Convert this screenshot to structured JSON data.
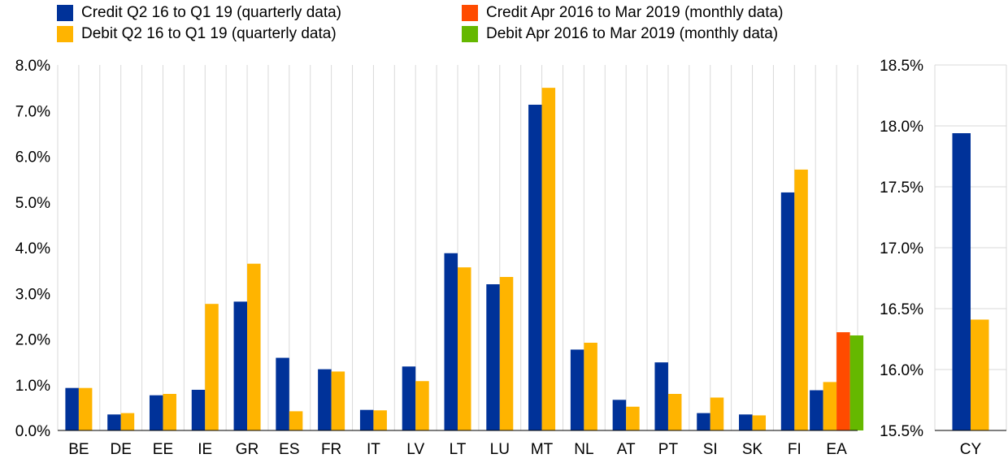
{
  "chart_data": [
    {
      "type": "bar",
      "categories": [
        "BE",
        "DE",
        "EE",
        "IE",
        "GR",
        "ES",
        "FR",
        "IT",
        "LV",
        "LT",
        "LU",
        "MT",
        "NL",
        "AT",
        "PT",
        "SI",
        "SK",
        "FI",
        "EA"
      ],
      "series": [
        {
          "name": "Credit Q2 16 to Q1 19 (quarterly data)",
          "color": "#003299",
          "values": [
            0.93,
            0.35,
            0.77,
            0.89,
            2.82,
            1.59,
            1.34,
            0.45,
            1.4,
            3.88,
            3.2,
            7.13,
            1.77,
            0.67,
            1.49,
            0.38,
            0.35,
            5.21,
            0.88
          ]
        },
        {
          "name": "Debit Q2 16 to Q1 19 (quarterly data)",
          "color": "#FFB400",
          "values": [
            0.93,
            0.38,
            0.8,
            2.77,
            3.65,
            0.42,
            1.29,
            0.44,
            1.08,
            3.57,
            3.36,
            7.5,
            1.92,
            0.52,
            0.8,
            0.72,
            0.33,
            5.71,
            1.06
          ]
        },
        {
          "name": "Credit Apr 2016 to Mar 2019 (monthly data)",
          "color": "#FF4B00",
          "values": [
            null,
            null,
            null,
            null,
            null,
            null,
            null,
            null,
            null,
            null,
            null,
            null,
            null,
            null,
            null,
            null,
            null,
            null,
            2.15
          ]
        },
        {
          "name": "Debit Apr 2016 to Mar 2019 (monthly data)",
          "color": "#65B800",
          "values": [
            null,
            null,
            null,
            null,
            null,
            null,
            null,
            null,
            null,
            null,
            null,
            null,
            null,
            null,
            null,
            null,
            null,
            null,
            2.08
          ]
        }
      ],
      "ylim": [
        0,
        8
      ],
      "yticks": [
        "0.0%",
        "1.0%",
        "2.0%",
        "3.0%",
        "4.0%",
        "5.0%",
        "6.0%",
        "7.0%",
        "8.0%"
      ],
      "grid": "vertical",
      "legend": "top"
    },
    {
      "type": "bar",
      "categories": [
        "CY"
      ],
      "series": [
        {
          "name": "Credit Q2 16 to Q1 19 (quarterly data)",
          "color": "#003299",
          "values": [
            17.94
          ]
        },
        {
          "name": "Debit Q2 16 to Q1 19 (quarterly data)",
          "color": "#FFB400",
          "values": [
            16.41
          ]
        }
      ],
      "ylim": [
        15.5,
        18.5
      ],
      "yticks": [
        "15.5%",
        "16.0%",
        "16.5%",
        "17.0%",
        "17.5%",
        "18.0%",
        "18.5%"
      ],
      "grid": "horizontal"
    }
  ]
}
